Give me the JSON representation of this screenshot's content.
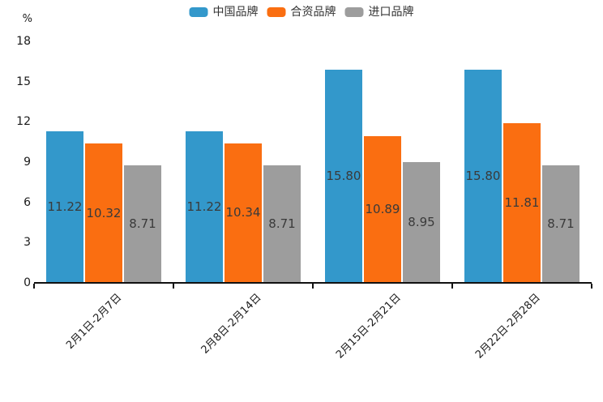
{
  "legend": {
    "items": [
      "中国品牌",
      "合资品牌",
      "进口品牌"
    ]
  },
  "y_axis": {
    "unit_label": "%",
    "tick_labels": [
      "0",
      "3",
      "6",
      "9",
      "12",
      "15",
      "18"
    ]
  },
  "chart_data": {
    "type": "bar",
    "categories": [
      "2月1日-2月7日",
      "2月8日-2月14日",
      "2月15日-2月21日",
      "2月22日-2月28日"
    ],
    "series": [
      {
        "name": "中国品牌",
        "color": "#3398cb",
        "values": [
          11.22,
          11.22,
          15.8,
          15.8
        ]
      },
      {
        "name": "合资品牌",
        "color": "#fa6e11",
        "values": [
          10.32,
          10.34,
          10.89,
          11.81
        ]
      },
      {
        "name": "进口品牌",
        "color": "#9d9d9d",
        "values": [
          8.71,
          8.71,
          8.95,
          8.71
        ]
      }
    ],
    "title": "",
    "xlabel": "",
    "ylabel": "%",
    "ylim": [
      0,
      18
    ],
    "yticks": [
      0,
      3,
      6,
      9,
      12,
      15,
      18
    ],
    "grid": false,
    "legend_position": "top",
    "value_labels": "centered-inside-bars",
    "value_label_format": "2-decimals",
    "x_label_rotation_deg": -45
  }
}
